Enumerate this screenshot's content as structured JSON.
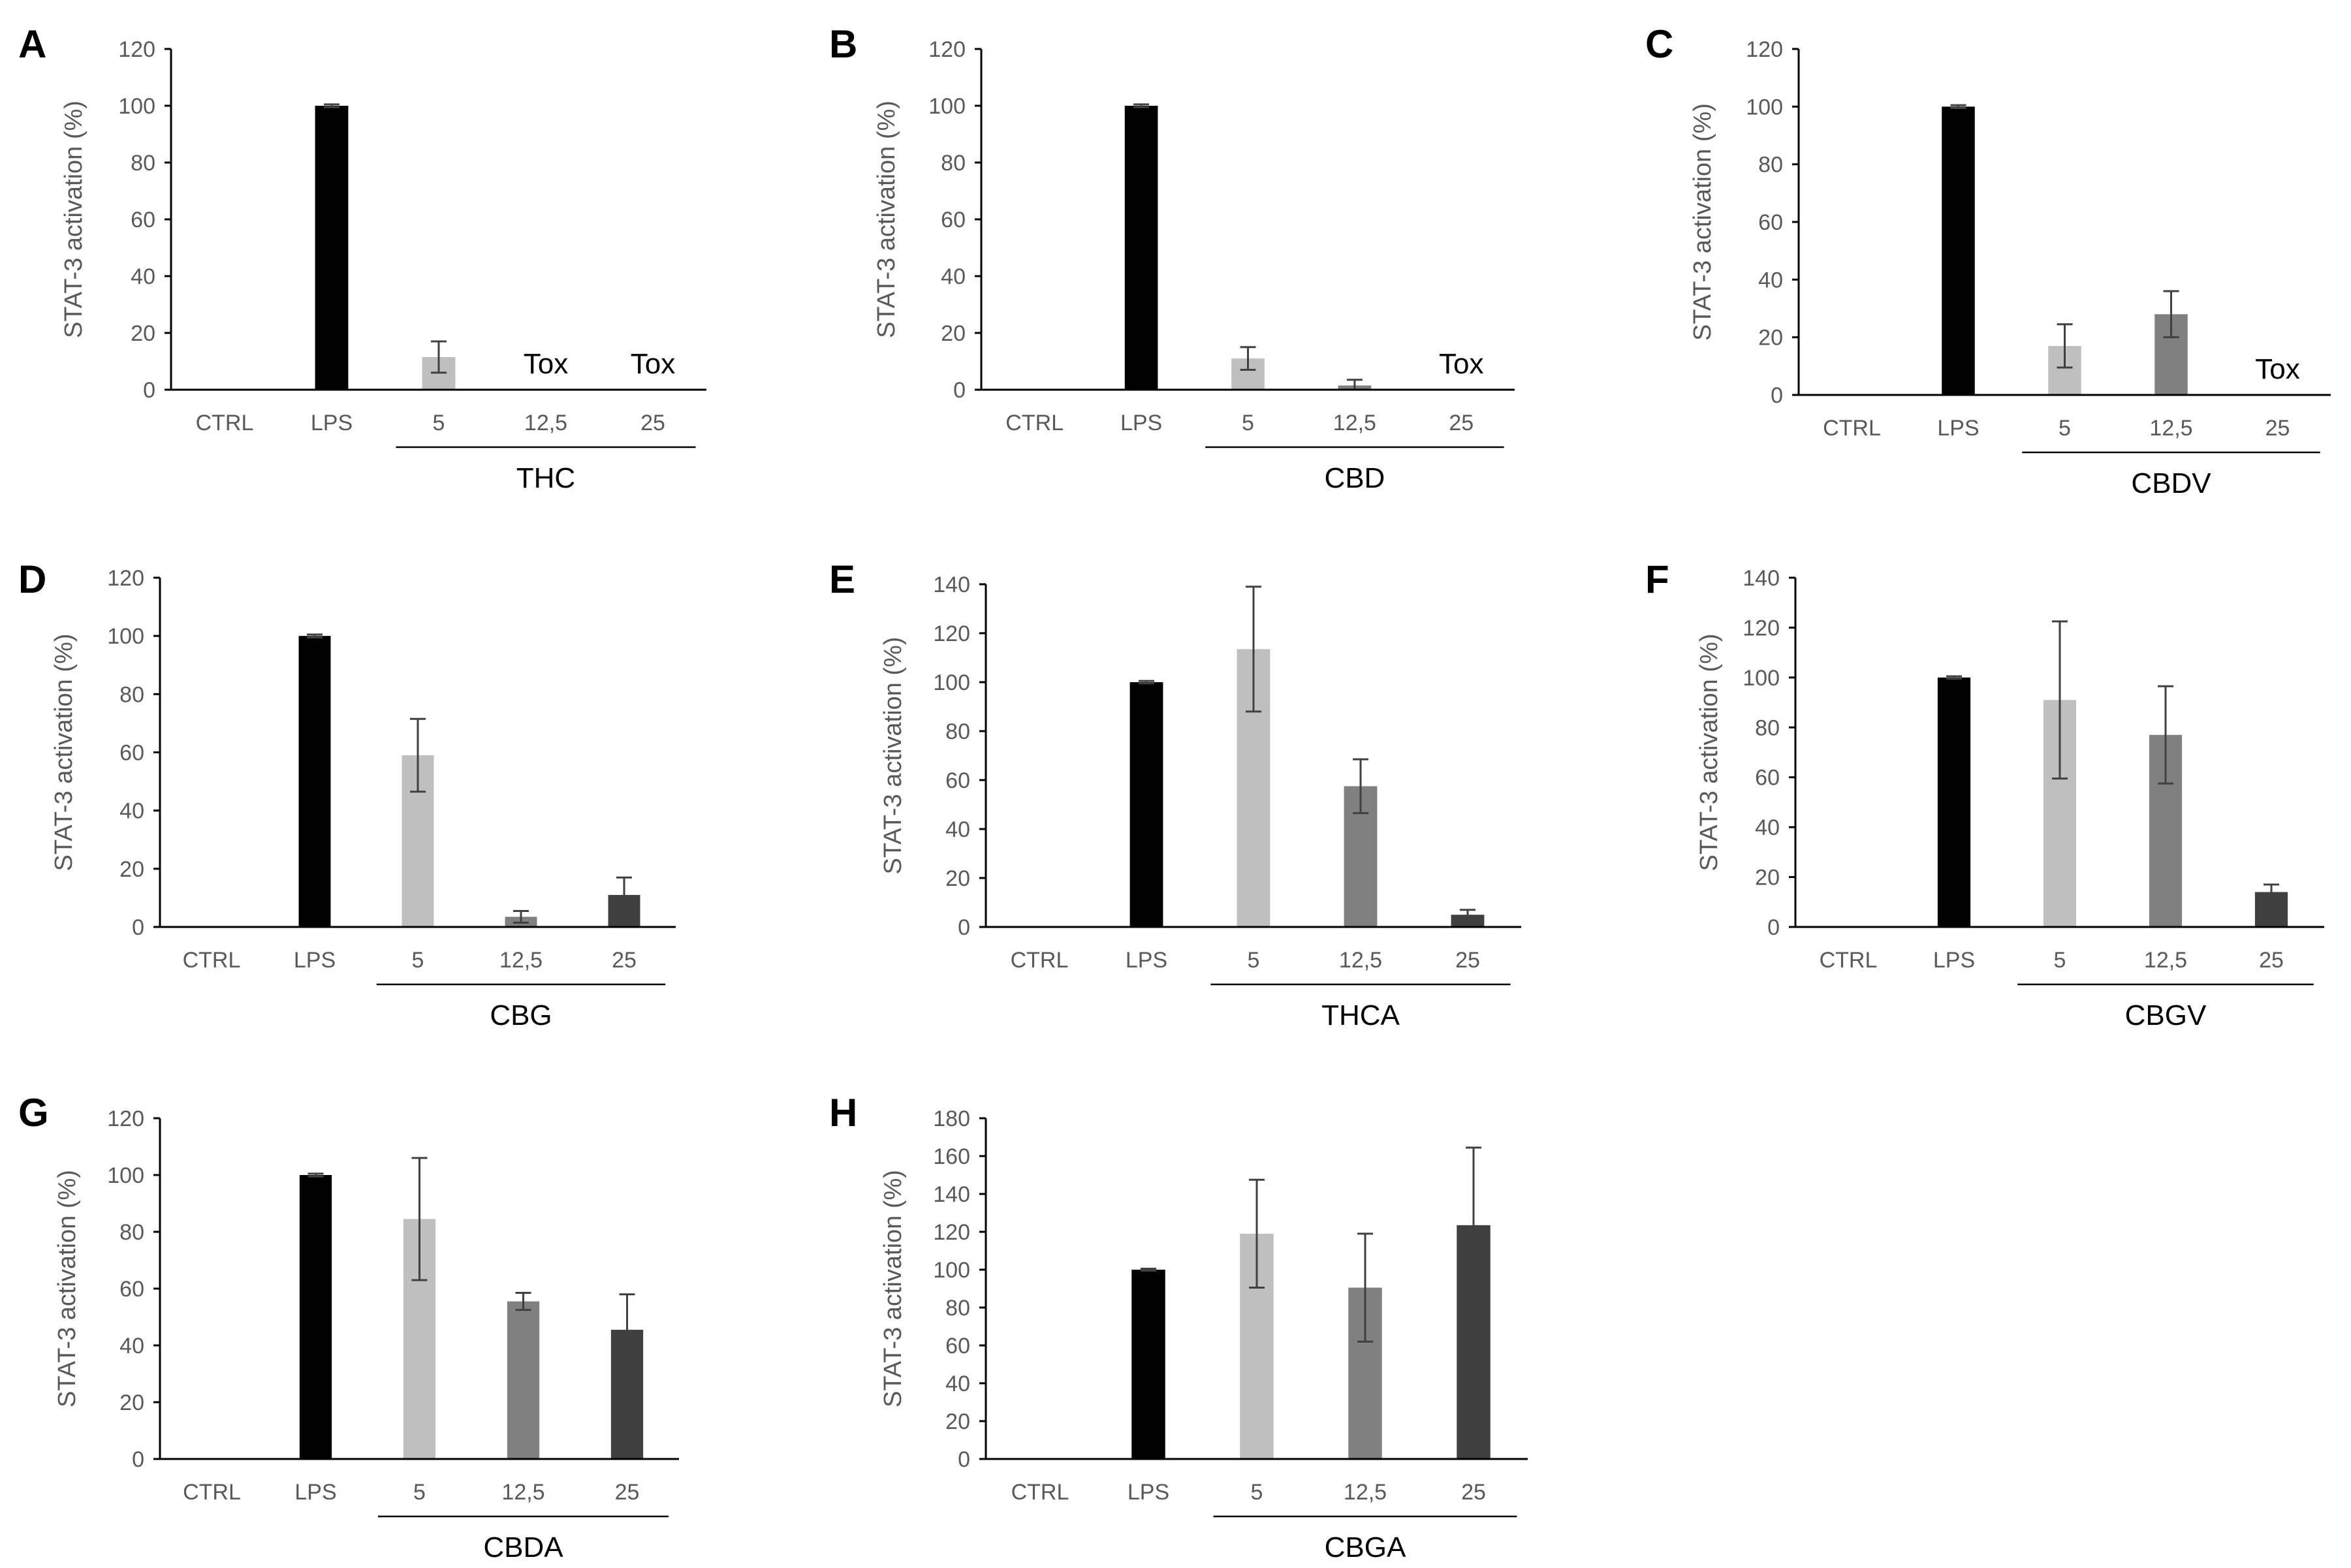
{
  "figure": {
    "colors": {
      "CTRL": "#ffffff",
      "LPS": "#000000",
      "5": "#bfbfbf",
      "12,5": "#808080",
      "25": "#404040",
      "axis": "#000000",
      "text": "#595959",
      "errorbar": "#404040"
    }
  },
  "chart_data": [
    {
      "panel": "A",
      "type": "bar",
      "title": "",
      "xlabel": "THC",
      "ylabel": "STAT-3 activation (%)",
      "ylim": [
        0,
        120
      ],
      "yticks": [
        0,
        20,
        40,
        60,
        80,
        100,
        120
      ],
      "categories": [
        "CTRL",
        "LPS",
        "5",
        "12,5",
        "25"
      ],
      "group_label": "THC",
      "group_categories": [
        "5",
        "12,5",
        "25"
      ],
      "values": [
        0,
        100,
        11.5,
        0,
        0
      ],
      "errors": [
        0,
        0.5,
        5.5,
        0,
        0
      ],
      "annotations": [
        {
          "category": "12,5",
          "text": "Tox"
        },
        {
          "category": "25",
          "text": "Tox"
        }
      ]
    },
    {
      "panel": "B",
      "type": "bar",
      "title": "",
      "xlabel": "CBD",
      "ylabel": "STAT-3 activation (%)",
      "ylim": [
        0,
        120
      ],
      "yticks": [
        0,
        20,
        40,
        60,
        80,
        100,
        120
      ],
      "categories": [
        "CTRL",
        "LPS",
        "5",
        "12,5",
        "25"
      ],
      "group_label": "CBD",
      "group_categories": [
        "5",
        "12,5",
        "25"
      ],
      "values": [
        0,
        100,
        11,
        1.5,
        0
      ],
      "errors": [
        0,
        0.5,
        4,
        2,
        0
      ],
      "annotations": [
        {
          "category": "25",
          "text": "Tox"
        }
      ]
    },
    {
      "panel": "C",
      "type": "bar",
      "title": "",
      "xlabel": "CBDV",
      "ylabel": "STAT-3 activation (%)",
      "ylim": [
        0,
        120
      ],
      "yticks": [
        0,
        20,
        40,
        60,
        80,
        100,
        120
      ],
      "categories": [
        "CTRL",
        "LPS",
        "5",
        "12,5",
        "25"
      ],
      "group_label": "CBDV",
      "group_categories": [
        "5",
        "12,5",
        "25"
      ],
      "values": [
        0,
        100,
        17,
        28,
        0
      ],
      "errors": [
        0,
        0.5,
        7.5,
        8,
        0
      ],
      "annotations": [
        {
          "category": "25",
          "text": "Tox"
        }
      ]
    },
    {
      "panel": "D",
      "type": "bar",
      "title": "",
      "xlabel": "CBG",
      "ylabel": "STAT-3 activation (%)",
      "ylim": [
        0,
        120
      ],
      "yticks": [
        0,
        20,
        40,
        60,
        80,
        100,
        120
      ],
      "categories": [
        "CTRL",
        "LPS",
        "5",
        "12,5",
        "25"
      ],
      "group_label": "CBG",
      "group_categories": [
        "5",
        "12,5",
        "25"
      ],
      "values": [
        0,
        100,
        59,
        3.5,
        11
      ],
      "errors": [
        0,
        0.5,
        12.5,
        2,
        6
      ],
      "annotations": []
    },
    {
      "panel": "E",
      "type": "bar",
      "title": "",
      "xlabel": "THCA",
      "ylabel": "STAT-3 activation (%)",
      "ylim": [
        0,
        140
      ],
      "yticks": [
        0,
        20,
        40,
        60,
        80,
        100,
        120,
        140
      ],
      "categories": [
        "CTRL",
        "LPS",
        "5",
        "12,5",
        "25"
      ],
      "group_label": "THCA",
      "group_categories": [
        "5",
        "12,5",
        "25"
      ],
      "values": [
        0,
        100,
        113.5,
        57.5,
        5
      ],
      "errors": [
        0,
        0.5,
        25.5,
        11,
        2
      ],
      "annotations": []
    },
    {
      "panel": "F",
      "type": "bar",
      "title": "",
      "xlabel": "CBGV",
      "ylabel": "STAT-3 activation (%)",
      "ylim": [
        0,
        140
      ],
      "yticks": [
        0,
        20,
        40,
        60,
        80,
        100,
        120,
        140
      ],
      "categories": [
        "CTRL",
        "LPS",
        "5",
        "12,5",
        "25"
      ],
      "group_label": "CBGV",
      "group_categories": [
        "5",
        "12,5",
        "25"
      ],
      "values": [
        0,
        100,
        91,
        77,
        14
      ],
      "errors": [
        0,
        0.5,
        31.5,
        19.5,
        3
      ],
      "annotations": []
    },
    {
      "panel": "G",
      "type": "bar",
      "title": "",
      "xlabel": "CBDA",
      "ylabel": "STAT-3 activation (%)",
      "ylim": [
        0,
        120
      ],
      "yticks": [
        0,
        20,
        40,
        60,
        80,
        100,
        120
      ],
      "categories": [
        "CTRL",
        "LPS",
        "5",
        "12,5",
        "25"
      ],
      "group_label": "CBDA",
      "group_categories": [
        "5",
        "12,5",
        "25"
      ],
      "values": [
        0,
        100,
        84.5,
        55.5,
        45.5
      ],
      "errors": [
        0,
        0.5,
        21.5,
        3,
        12.5
      ],
      "annotations": []
    },
    {
      "panel": "H",
      "type": "bar",
      "title": "",
      "xlabel": "CBGA",
      "ylabel": "STAT-3 activation (%)",
      "ylim": [
        0,
        180
      ],
      "yticks": [
        0,
        20,
        40,
        60,
        80,
        100,
        120,
        140,
        160,
        180
      ],
      "categories": [
        "CTRL",
        "LPS",
        "5",
        "12,5",
        "25"
      ],
      "group_label": "CBGA",
      "group_categories": [
        "5",
        "12,5",
        "25"
      ],
      "values": [
        0,
        100,
        119,
        90.5,
        123.5
      ],
      "errors": [
        0,
        0.5,
        28.5,
        28.5,
        41
      ],
      "annotations": []
    }
  ]
}
